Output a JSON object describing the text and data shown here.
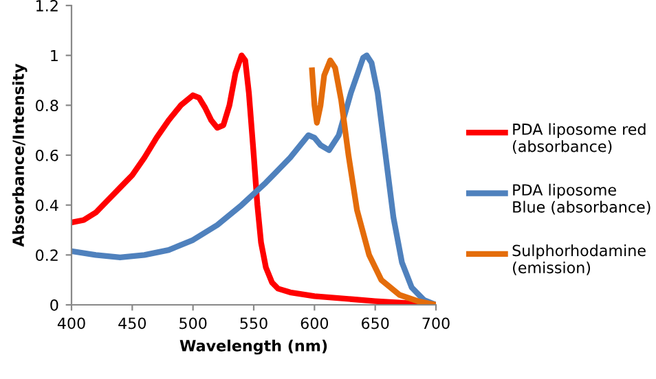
{
  "chart_data": {
    "type": "line",
    "xlabel": "Wavelength (nm)",
    "ylabel": "Absorbance/Intensity",
    "xlim": [
      400,
      700
    ],
    "xticks": [
      400,
      450,
      500,
      550,
      600,
      650,
      700
    ],
    "ylim": [
      0,
      1.2
    ],
    "yticks": [
      0,
      0.2,
      0.4,
      0.6,
      0.8,
      1,
      1.2
    ],
    "grid": false,
    "legend": "right",
    "marker": "none",
    "line_style": "solid",
    "series": [
      {
        "name": "PDA liposome red (absorbance)",
        "color": "#ff0000",
        "x": [
          400,
          410,
          420,
          430,
          440,
          450,
          460,
          470,
          480,
          490,
          500,
          505,
          510,
          515,
          520,
          525,
          530,
          535,
          540,
          543,
          546,
          550,
          553,
          556,
          560,
          565,
          570,
          580,
          600,
          650,
          700
        ],
        "values": [
          0.33,
          0.34,
          0.37,
          0.42,
          0.47,
          0.52,
          0.59,
          0.67,
          0.74,
          0.8,
          0.84,
          0.83,
          0.79,
          0.74,
          0.71,
          0.72,
          0.8,
          0.93,
          1.0,
          0.98,
          0.85,
          0.6,
          0.4,
          0.25,
          0.15,
          0.09,
          0.065,
          0.05,
          0.035,
          0.015,
          0.0
        ]
      },
      {
        "name": "PDA liposome Blue (absorbance)",
        "color": "#4f81bd",
        "x": [
          400,
          420,
          440,
          460,
          480,
          500,
          520,
          540,
          560,
          580,
          595,
          600,
          605,
          612,
          620,
          630,
          640,
          643,
          647,
          652,
          658,
          665,
          672,
          680,
          690,
          700
        ],
        "values": [
          0.215,
          0.2,
          0.19,
          0.2,
          0.22,
          0.26,
          0.32,
          0.4,
          0.49,
          0.59,
          0.68,
          0.67,
          0.64,
          0.62,
          0.68,
          0.85,
          0.99,
          1.0,
          0.97,
          0.85,
          0.62,
          0.35,
          0.17,
          0.07,
          0.02,
          0.0
        ]
      },
      {
        "name": "Sulphorhodamine (emission)",
        "color": "#e46c0a",
        "x": [
          598,
          600,
          602,
          605,
          608,
          613,
          617,
          622,
          628,
          635,
          645,
          655,
          670,
          685,
          700
        ],
        "values": [
          0.94,
          0.8,
          0.73,
          0.8,
          0.92,
          0.98,
          0.95,
          0.82,
          0.6,
          0.38,
          0.2,
          0.1,
          0.04,
          0.015,
          0.0
        ]
      }
    ]
  }
}
